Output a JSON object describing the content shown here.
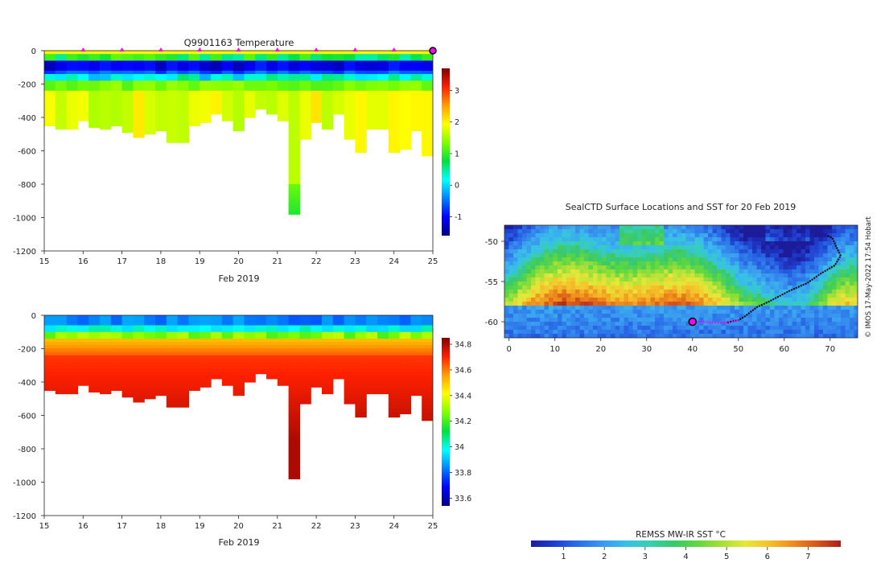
{
  "colors": {
    "jet": [
      "#00007f",
      "#0000ff",
      "#007fff",
      "#00ffff",
      "#00e040",
      "#7fff00",
      "#ffff00",
      "#ff9f00",
      "#ff2000",
      "#7f0000"
    ],
    "sst": [
      "#1c1c9a",
      "#1f3fd0",
      "#2a6fe8",
      "#3a98f0",
      "#38c0e8",
      "#37d0b0",
      "#39c86a",
      "#5fd840",
      "#a4e038",
      "#e6e838",
      "#f4c22a",
      "#ee8c1c",
      "#d8561a",
      "#a8201a"
    ],
    "track_surface": "#ff00ff",
    "track_path": "#000000"
  },
  "chart_data": [
    {
      "type": "heatmap",
      "title": "Q9901163  Temperature",
      "xlabel": "Feb 2019",
      "ylabel": "",
      "xlim": [
        15,
        25
      ],
      "ylim": [
        -1200,
        0
      ],
      "x_ticks": [
        15,
        16,
        17,
        18,
        19,
        20,
        21,
        22,
        23,
        24,
        25
      ],
      "x_tick_labels": [
        "15",
        "16",
        "17",
        "18",
        "19",
        "20",
        "21",
        "22",
        "23",
        "24",
        "25"
      ],
      "y_ticks": [
        0,
        -200,
        -400,
        -600,
        -800,
        -1000,
        -1200
      ],
      "y_tick_labels": [
        "0",
        "-200",
        "-400",
        "-600",
        "-800",
        "-1000",
        "-1200"
      ],
      "colorbar": {
        "ticks": [
          3,
          2,
          1,
          0,
          -1
        ],
        "tick_labels": [
          "3",
          "2",
          "1",
          "0",
          "-1"
        ],
        "range": [
          -1.6,
          3.7
        ]
      },
      "profile_markers": [
        16,
        17,
        18,
        19,
        20,
        21,
        22,
        23,
        24
      ],
      "latest_profile": 25,
      "profiles_max_depth": [
        450,
        470,
        470,
        420,
        460,
        470,
        450,
        490,
        520,
        500,
        480,
        550,
        550,
        450,
        430,
        380,
        420,
        480,
        400,
        350,
        380,
        420,
        980,
        530,
        430,
        470,
        380,
        530,
        610,
        470,
        470,
        610,
        590,
        480,
        630
      ]
    },
    {
      "type": "heatmap",
      "title": "",
      "xlabel": "Feb 2019",
      "ylabel": "",
      "xlim": [
        15,
        25
      ],
      "ylim": [
        -1200,
        0
      ],
      "x_ticks": [
        15,
        16,
        17,
        18,
        19,
        20,
        21,
        22,
        23,
        24,
        25
      ],
      "x_tick_labels": [
        "15",
        "16",
        "17",
        "18",
        "19",
        "20",
        "21",
        "22",
        "23",
        "24",
        "25"
      ],
      "y_ticks": [
        0,
        -200,
        -400,
        -600,
        -800,
        -1000,
        -1200
      ],
      "y_tick_labels": [
        "0",
        "-200",
        "-400",
        "-600",
        "-800",
        "-1000",
        "-1200"
      ],
      "colorbar": {
        "ticks": [
          34.8,
          34.6,
          34.4,
          34.2,
          34,
          33.8,
          33.6
        ],
        "tick_labels": [
          "34.8",
          "34.6",
          "34.4",
          "34.2",
          "34",
          "33.8",
          "33.6"
        ],
        "range": [
          33.54,
          34.85
        ]
      },
      "profiles_max_depth": [
        450,
        470,
        470,
        420,
        460,
        470,
        450,
        490,
        520,
        500,
        480,
        550,
        550,
        450,
        430,
        380,
        420,
        480,
        400,
        350,
        380,
        420,
        980,
        530,
        430,
        470,
        380,
        530,
        610,
        470,
        470,
        610,
        590,
        480,
        630
      ]
    },
    {
      "type": "heatmap",
      "title": "SealCTD Surface Locations and SST for 20 Feb 2019",
      "xlabel": "",
      "ylabel": "",
      "xlim": [
        -1,
        76
      ],
      "ylim": [
        -62,
        -48
      ],
      "x_ticks": [
        0,
        10,
        20,
        30,
        40,
        50,
        60,
        70
      ],
      "x_tick_labels": [
        "0",
        "10",
        "20",
        "30",
        "40",
        "50",
        "60",
        "70"
      ],
      "y_ticks": [
        -50,
        -55,
        -60
      ],
      "y_tick_labels": [
        "-50",
        "-55",
        "-60"
      ],
      "colorbar": {
        "title": "REMSS MW-IR SST °C",
        "ticks": [
          1,
          2,
          3,
          4,
          5,
          6,
          7
        ],
        "tick_labels": [
          "1",
          "2",
          "3",
          "4",
          "5",
          "6",
          "7"
        ],
        "range": [
          0.2,
          7.8
        ]
      },
      "start_location": [
        40,
        -60
      ],
      "track": [
        [
          69.5,
          -49.3
        ],
        [
          70.5,
          -49.6
        ],
        [
          71.2,
          -50.5
        ],
        [
          72.3,
          -51.8
        ],
        [
          71,
          -53
        ],
        [
          68,
          -54
        ],
        [
          65,
          -55.2
        ],
        [
          61,
          -56.2
        ],
        [
          57,
          -57.4
        ],
        [
          54,
          -58.2
        ],
        [
          51.5,
          -59.3
        ],
        [
          50,
          -59.8
        ],
        [
          47.5,
          -60.1
        ],
        [
          45,
          -60.1
        ],
        [
          42,
          -60
        ],
        [
          40,
          -60
        ]
      ]
    }
  ],
  "watermark": "© IMOS 17-May-2022 17:54 Hobart"
}
